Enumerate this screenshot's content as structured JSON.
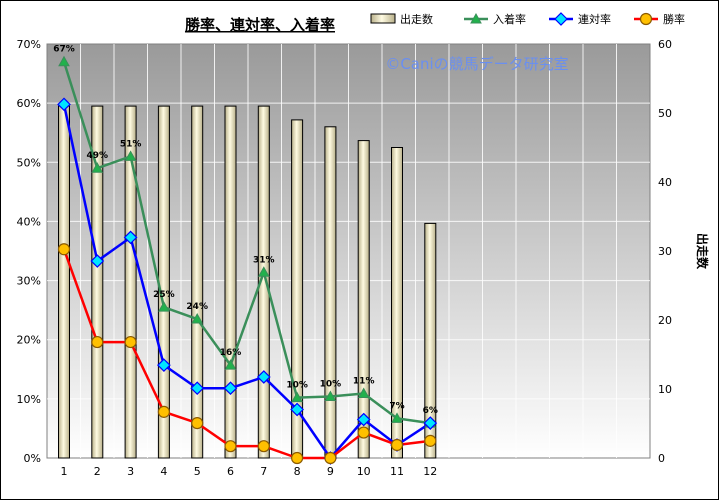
{
  "chart_data": {
    "type": "bar+line",
    "title": "勝率、連対率、入着率",
    "watermark": "©Caniの競馬データ研究室",
    "x": [
      "1",
      "2",
      "3",
      "4",
      "5",
      "6",
      "7",
      "8",
      "9",
      "10",
      "11",
      "12"
    ],
    "y_left": {
      "ticks": [
        "0%",
        "10%",
        "20%",
        "30%",
        "40%",
        "50%",
        "60%",
        "70%"
      ],
      "ylim": [
        0,
        70
      ]
    },
    "y_right": {
      "label": "出走数",
      "ticks": [
        "0",
        "10",
        "20",
        "30",
        "40",
        "50",
        "60"
      ],
      "ylim": [
        0,
        60
      ]
    },
    "grid": true,
    "legend_position": "top",
    "bars": {
      "name": "出走数",
      "axis": "right",
      "values": [
        51,
        51,
        51,
        51,
        51,
        51,
        51,
        49,
        48,
        46,
        45,
        34
      ]
    },
    "series": [
      {
        "name": "入着率",
        "color": "#3a8f5a",
        "marker": "triangle",
        "axis": "left",
        "values": [
          67,
          49,
          51,
          25.5,
          23.5,
          15.7,
          31.4,
          10.2,
          10.4,
          10.9,
          6.7,
          5.9
        ],
        "labels": [
          "67%",
          "49%",
          "51%",
          "25%",
          "24%",
          "16%",
          "31%",
          "10%",
          "10%",
          "11%",
          "7%",
          "6%"
        ]
      },
      {
        "name": "連対率",
        "color": "#0000ff",
        "marker": "diamond",
        "axis": "left",
        "values": [
          59.8,
          33.3,
          37.3,
          15.7,
          11.8,
          11.8,
          13.7,
          8.2,
          0,
          6.5,
          2.2,
          5.9
        ]
      },
      {
        "name": "勝率",
        "color": "#ff0000",
        "marker": "circle",
        "axis": "left",
        "values": [
          35.3,
          19.6,
          19.6,
          7.8,
          5.9,
          2.0,
          2.0,
          0,
          0,
          4.3,
          2.2,
          2.9
        ]
      }
    ],
    "colors": {
      "plot_bg_top": "#9a9a9a",
      "plot_bg_bottom": "#ffffff",
      "bar_light": "#fffbe2",
      "bar_dark": "#b8b08a"
    }
  }
}
